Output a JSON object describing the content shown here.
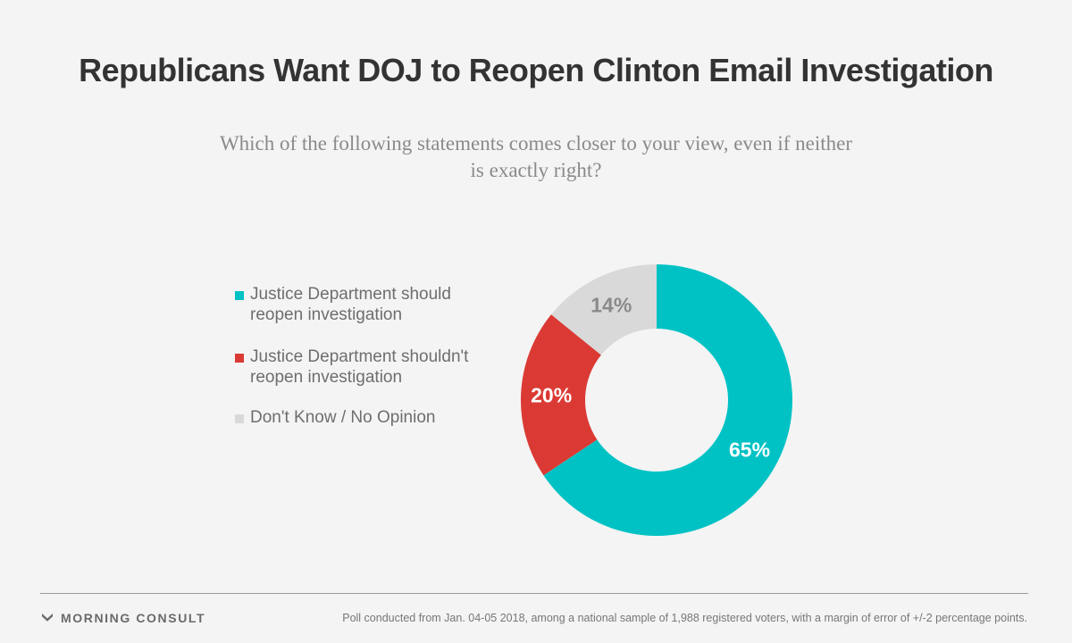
{
  "title": "Republicans Want DOJ to Reopen Clinton Email Investigation",
  "subtitle": "Which of the following statements comes closer to your view, even if neither is exactly right?",
  "legend": [
    {
      "label": "Justice Department should reopen investigation",
      "color": "#00c2c4"
    },
    {
      "label": "Justice Department shouldn't reopen investigation",
      "color": "#db3a34"
    },
    {
      "label": "Don't Know / No Opinion",
      "color": "#d9d9d9"
    }
  ],
  "chart_data": {
    "type": "pie",
    "donut": true,
    "categories": [
      "Justice Department should reopen investigation",
      "Justice Department shouldn't reopen investigation",
      "Don't Know / No Opinion"
    ],
    "values": [
      65,
      20,
      14
    ],
    "labels": [
      "65%",
      "20%",
      "14%"
    ],
    "colors": [
      "#00c2c4",
      "#db3a34",
      "#d9d9d9"
    ],
    "label_colors": [
      "#ffffff",
      "#ffffff",
      "#8a8a8a"
    ]
  },
  "footer": {
    "brand": "MORNING CONSULT",
    "source": "Poll conducted from Jan. 04-05 2018, among a national sample of 1,988 registered voters, with a margin of error of +/-2 percentage points."
  }
}
